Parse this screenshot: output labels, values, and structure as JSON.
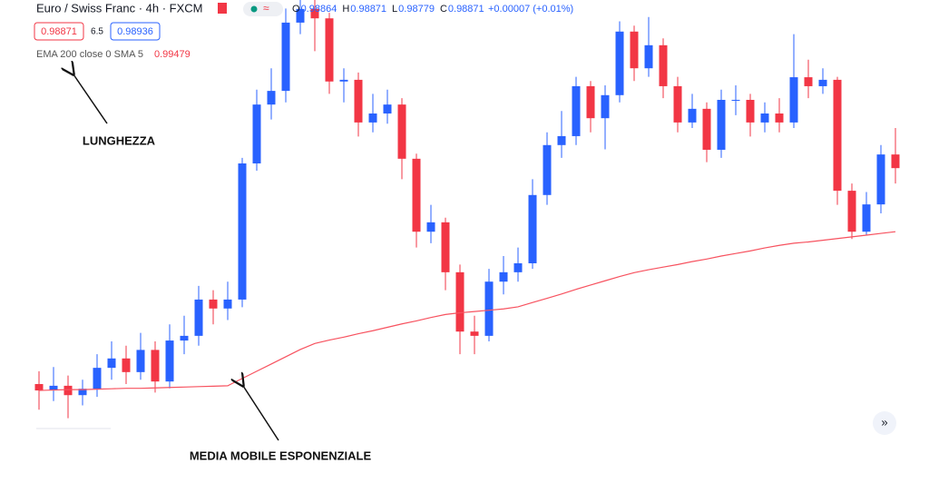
{
  "chart_data": {
    "type": "candlestick",
    "title": "Euro / Swiss Franc · 4h · FXCM",
    "ohlc": [
      {
        "key": "O",
        "value": "0.98864"
      },
      {
        "key": "H",
        "value": "0.98871"
      },
      {
        "key": "L",
        "value": "0.98779"
      },
      {
        "key": "C",
        "value": "0.98871"
      }
    ],
    "change": "+0.00007 (+0.01%)",
    "sell_price": "0.98871",
    "spread": "6.5",
    "buy_price": "0.98936",
    "indicator": {
      "label": "EMA 200 close 0 SMA 5",
      "value": "0.99479"
    },
    "annotations": [
      "LUNGHEZZA",
      "MEDIA MOBILE ESPONENZIALE"
    ],
    "up_color": "#2962ff",
    "down_color": "#f23645",
    "ylim": [
      0,
      100
    ],
    "open": [
      10,
      8.5,
      9.6,
      7.4,
      8.9,
      13.8,
      16,
      12.8,
      18,
      10.6,
      20.2,
      21.3,
      29.8,
      27.7,
      29.8,
      61.7,
      75.5,
      78.7,
      94.7,
      97.9,
      95.7,
      80.9,
      81.3,
      71.3,
      73.4,
      75.5,
      62.8,
      45.7,
      47.9,
      36.2,
      22.3,
      21.3,
      34,
      36.2,
      38.3,
      54.3,
      66,
      68.1,
      79.8,
      72.3,
      77.7,
      92.6,
      84,
      89.4,
      79.8,
      71.3,
      74.5,
      64.9,
      76.6,
      76.6,
      71.3,
      73.4,
      71.3,
      81.9,
      79.8,
      81.3,
      55.3,
      45.7,
      52.1,
      63.8
    ],
    "high": [
      13,
      14,
      12,
      11,
      17,
      20,
      19,
      22,
      20,
      24,
      26,
      33,
      32,
      34,
      63,
      79,
      84,
      98,
      100,
      100,
      97,
      84,
      83,
      78,
      79,
      77,
      64,
      52,
      49,
      38,
      26,
      37,
      40,
      42,
      58,
      69,
      74,
      82,
      81,
      80,
      95,
      94,
      96,
      91,
      82,
      78,
      76,
      79,
      80,
      78,
      76,
      77,
      92,
      86,
      84,
      82,
      57,
      55,
      66,
      70
    ],
    "low": [
      4,
      6,
      2,
      5,
      7,
      11,
      10,
      11,
      8,
      9,
      17,
      19,
      24,
      25,
      28,
      60,
      72,
      76,
      92,
      88,
      78,
      76,
      68,
      69,
      71,
      58,
      42,
      43,
      32,
      17,
      17,
      20,
      31,
      34,
      37,
      52,
      63,
      66,
      69,
      65,
      76,
      81,
      82,
      77,
      69,
      70,
      62,
      63,
      73,
      68,
      69,
      69,
      70,
      77,
      78,
      52,
      44,
      45,
      50,
      57
    ],
    "close": [
      8.5,
      9.6,
      7.4,
      8.9,
      13.8,
      16,
      12.8,
      18,
      10.6,
      20.2,
      21.3,
      29.8,
      27.7,
      29.8,
      61.7,
      75.5,
      78.7,
      94.7,
      97.9,
      95.7,
      80.9,
      81.3,
      71.3,
      73.4,
      75.5,
      62.8,
      45.7,
      47.9,
      36.2,
      22.3,
      21.3,
      34,
      36.2,
      38.3,
      54.3,
      66,
      68.1,
      79.8,
      72.3,
      77.7,
      92.6,
      84,
      89.4,
      79.8,
      71.3,
      74.5,
      64.9,
      76.6,
      76.6,
      71.3,
      73.4,
      71.3,
      81.9,
      79.8,
      81.3,
      55.3,
      45.7,
      52.1,
      63.8,
      60.6
    ],
    "ema": {
      "color": "#f7525f",
      "values": [
        8.5,
        8.6,
        8.7,
        8.7,
        8.8,
        8.9,
        9.0,
        9.0,
        9.1,
        9.2,
        9.3,
        9.4,
        9.5,
        9.6,
        11.3,
        13.0,
        14.7,
        16.4,
        18.1,
        19.5,
        20.3,
        21.0,
        21.8,
        22.5,
        23.3,
        24.1,
        24.8,
        25.6,
        26.3,
        26.7,
        27.0,
        27.3,
        27.6,
        28.1,
        29.1,
        30.1,
        31.1,
        32.2,
        33.2,
        34.2,
        35.2,
        36.1,
        36.8,
        37.4,
        38.0,
        38.7,
        39.3,
        40.0,
        40.6,
        41.2,
        41.9,
        42.5,
        43.0,
        43.3,
        43.7,
        44.1,
        44.5,
        44.9,
        45.3,
        45.7
      ]
    }
  }
}
